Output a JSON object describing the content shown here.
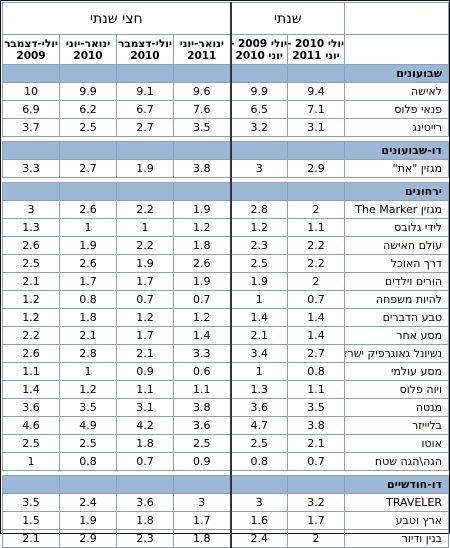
{
  "header": {
    "group_semiannual": "חצי שנתי",
    "group_annual": "שנתי",
    "periods_semiannual": [
      "ינואר-יוני 2011",
      "יולי-דצמבר 2010",
      "ינואר-יוני 2010",
      "יולי-דצמבר 2009"
    ],
    "periods_annual": [
      "יולי 2010 - יוני 2011",
      "יולי 2009 - יוני 2010"
    ]
  },
  "columns": [
    "יולי 2010 - יוני 2011",
    "יולי 2009 - יוני 2010",
    "ינואר-יוני 2011",
    "יולי-דצמבר 2010",
    "ינואר-יוני 2010",
    "יולי-דצמבר 2009"
  ],
  "sections": [
    {
      "title": "שבועונים",
      "rows": [
        {
          "name": "לאישה",
          "values": [
            "9.4",
            "9.9",
            "9.6",
            "9.1",
            "9.9",
            "10"
          ]
        },
        {
          "name": "פנאי פלוס",
          "values": [
            "7.1",
            "6.5",
            "7.6",
            "6.7",
            "6.2",
            "6.9"
          ]
        },
        {
          "name": "רייטינג",
          "values": [
            "3.1",
            "3.2",
            "3.5",
            "2.7",
            "2.5",
            "3.7"
          ]
        }
      ]
    },
    {
      "title": "דו-שבועונים",
      "rows": [
        {
          "name": "מגזין \"את\"",
          "values": [
            "2.9",
            "3",
            "3.8",
            "1.9",
            "2.7",
            "3.3"
          ]
        }
      ]
    },
    {
      "title": "ירחונים",
      "rows": [
        {
          "name": "מגזין The Marker",
          "values": [
            "2",
            "2.8",
            "1.9",
            "2.2",
            "2.6",
            "3"
          ]
        },
        {
          "name": "לידי גלובס",
          "values": [
            "1.1",
            "1.2",
            "1.2",
            "1",
            "1",
            "1.3"
          ]
        },
        {
          "name": "עולם האישה",
          "values": [
            "2.2",
            "2.3",
            "1.8",
            "2.2",
            "1.9",
            "2.6"
          ]
        },
        {
          "name": "דרך האוכל",
          "values": [
            "2.2",
            "2.5",
            "2.6",
            "1.9",
            "2.6",
            "2.5"
          ]
        },
        {
          "name": "הורים וילדים",
          "values": [
            "2",
            "1.9",
            "1.9",
            "1.7",
            "1.7",
            "2.1"
          ]
        },
        {
          "name": "להיות משפחה",
          "values": [
            "0.7",
            "1",
            "0.7",
            "0.7",
            "0.8",
            "1.2"
          ]
        },
        {
          "name": "טבע הדברים",
          "values": [
            "1.4",
            "1.4",
            "1.2",
            "1.2",
            "1.8",
            "1.2"
          ]
        },
        {
          "name": "מסע אחר",
          "values": [
            "1.4",
            "2.1",
            "1.4",
            "1.7",
            "2.1",
            "2.2"
          ]
        },
        {
          "name": "נשיונל גאוגרפיק ישראל",
          "values": [
            "2.7",
            "3.4",
            "3.3",
            "2.1",
            "2.8",
            "2.6"
          ]
        },
        {
          "name": "מסע עולמי",
          "values": [
            "0.8",
            "1",
            "0.6",
            "0.9",
            "1",
            "1.1"
          ]
        },
        {
          "name": "ויוה פלוס",
          "values": [
            "1.1",
            "1.3",
            "1.1",
            "1.1",
            "1.2",
            "1.4"
          ]
        },
        {
          "name": "מנטה",
          "values": [
            "3.5",
            "3.6",
            "3.8",
            "3.1",
            "3.5",
            "3.6"
          ]
        },
        {
          "name": "בליייזר",
          "values": [
            "3.8",
            "4.7",
            "3.6",
            "4.2",
            "4.9",
            "4.6"
          ]
        },
        {
          "name": "אוטו",
          "values": [
            "2.1",
            "2.5",
            "2.5",
            "1.8",
            "2.5",
            "2.5"
          ]
        },
        {
          "name": "הגה\\הגה שטח",
          "values": [
            "0.7",
            "0.8",
            "0.9",
            "0.7",
            "0.8",
            "1"
          ]
        }
      ]
    },
    {
      "title": "דו-חודשיים",
      "rows": [
        {
          "name": "TRAVELER",
          "values": [
            "3.2",
            "3",
            "3",
            "3.6",
            "2.4",
            "3.5"
          ]
        },
        {
          "name": "ארץ וטבע",
          "values": [
            "1.7",
            "1.6",
            "1.7",
            "1.8",
            "1.9",
            "1.5"
          ]
        },
        {
          "name": "בנין ודיור",
          "values": [
            "2",
            "2.4",
            "1.8",
            "2.3",
            "2.9",
            "2.1"
          ]
        }
      ]
    }
  ]
}
